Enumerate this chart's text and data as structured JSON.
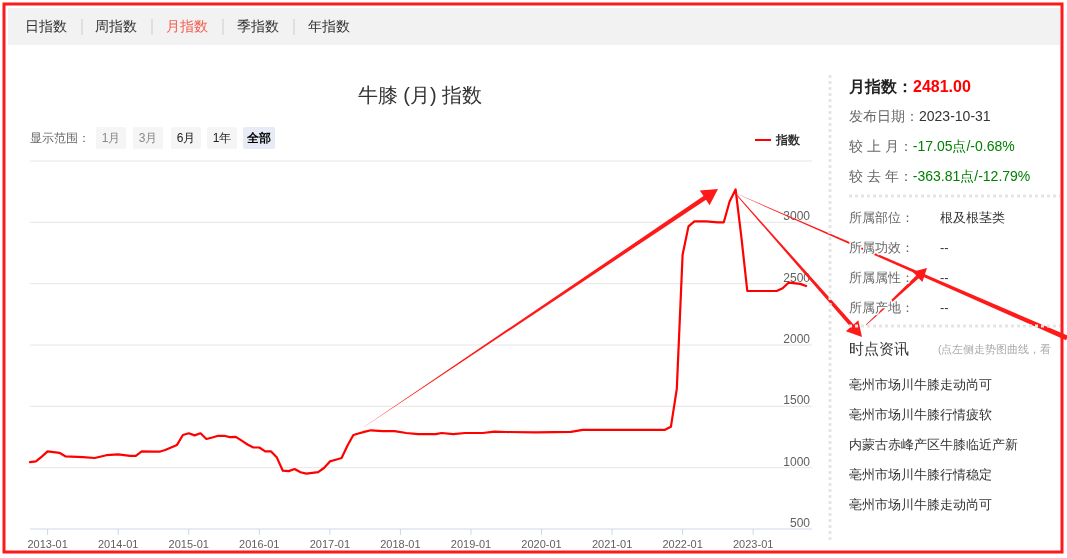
{
  "chart_data": [
    {
      "type": "line",
      "title": "牛膝 (月) 指数",
      "annotations": [
        "日指数",
        "周指数",
        "月指数",
        "季指数",
        "年指数",
        "显示范围：",
        "1月",
        "3月",
        "6月",
        "1年",
        "全部"
      ],
      "series": [
        {
          "name": "指数",
          "color": "#ff0000",
          "x": [
            "2012-10",
            "2012-11",
            "2012-12",
            "2013-01",
            "2013-03",
            "2013-04",
            "2013-07",
            "2013-09",
            "2013-11",
            "2014-01",
            "2014-03",
            "2014-04",
            "2014-05",
            "2014-07",
            "2014-08",
            "2014-09",
            "2014-10",
            "2014-11",
            "2014-12",
            "2015-01",
            "2015-02",
            "2015-03",
            "2015-04",
            "2015-05",
            "2015-06",
            "2015-07",
            "2015-08",
            "2015-09",
            "2015-10",
            "2015-11",
            "2015-12",
            "2016-01",
            "2016-02",
            "2016-03",
            "2016-04",
            "2016-05",
            "2016-06",
            "2016-07",
            "2016-08",
            "2016-09",
            "2016-10",
            "2016-11",
            "2016-12",
            "2017-01",
            "2017-02",
            "2017-03",
            "2017-04",
            "2017-05",
            "2017-06",
            "2017-07",
            "2017-08",
            "2017-10",
            "2017-12",
            "2018-02",
            "2018-04",
            "2018-07",
            "2018-08",
            "2018-10",
            "2018-12",
            "2019-03",
            "2019-05",
            "2019-07",
            "2019-12",
            "2020-06",
            "2020-08",
            "2021-01",
            "2021-10",
            "2021-11",
            "2021-12",
            "2022-01",
            "2022-02",
            "2022-03",
            "2022-05",
            "2022-07",
            "2022-08",
            "2022-09",
            "2022-10",
            "2022-11",
            "2022-12",
            "2023-01",
            "2023-05",
            "2023-06",
            "2023-07",
            "2023-09",
            "2023-10"
          ],
          "values": [
            1045,
            1051,
            1090,
            1133,
            1121,
            1093,
            1086,
            1079,
            1102,
            1108,
            1096,
            1096,
            1133,
            1130,
            1130,
            1144,
            1164,
            1186,
            1266,
            1280,
            1263,
            1280,
            1234,
            1246,
            1260,
            1260,
            1249,
            1251,
            1220,
            1189,
            1164,
            1164,
            1133,
            1133,
            1082,
            975,
            972,
            989,
            963,
            952,
            958,
            963,
            997,
            1051,
            1065,
            1079,
            1181,
            1266,
            1280,
            1294,
            1305,
            1297,
            1297,
            1283,
            1274,
            1274,
            1283,
            1274,
            1283,
            1283,
            1294,
            1291,
            1288,
            1292,
            1309,
            1309,
            1309,
            1333,
            1642,
            2735,
            2967,
            3008,
            3008,
            3000,
            3000,
            3172,
            3268,
            2877,
            2440,
            2440,
            2440,
            2462,
            2508,
            2498,
            2481
          ]
        }
      ],
      "xlim": [
        "2012-10",
        "2023-11"
      ],
      "xticks": [
        "2013-01",
        "2014-01",
        "2015-01",
        "2016-01",
        "2017-01",
        "2018-01",
        "2019-01",
        "2020-01",
        "2021-01",
        "2022-01",
        "2023-01"
      ],
      "ylim": [
        500,
        3500
      ],
      "yticks": [
        500,
        1000,
        1500,
        2000,
        2500,
        3000,
        {
          "value": 3500,
          "label": null
        }
      ],
      "grid": "y",
      "legend": "top right",
      "marker": "none",
      "line_style": "solid"
    },
    {
      "type": "other",
      "annotations": [
        "月指数：",
        "2481.00",
        "发布日期：",
        "2023-10-31",
        "较 上 月：",
        "-17.05点/-0.68%",
        "较 去 年：",
        "-363.81点/-12.79%",
        "所属部位：",
        "根及根茎类",
        "所属功效：",
        "--",
        "所属属性：",
        "--",
        "所属产地：",
        "--",
        "时点资讯",
        "(点左侧走势图曲线，看",
        "亳州市场川牛膝走动尚可",
        "亳州市场川牛膝行情疲软",
        "内蒙古赤峰产区牛膝临近产新",
        "亳州市场川牛膝行情稳定",
        "亳州市场川牛膝走动尚可"
      ]
    }
  ]
}
